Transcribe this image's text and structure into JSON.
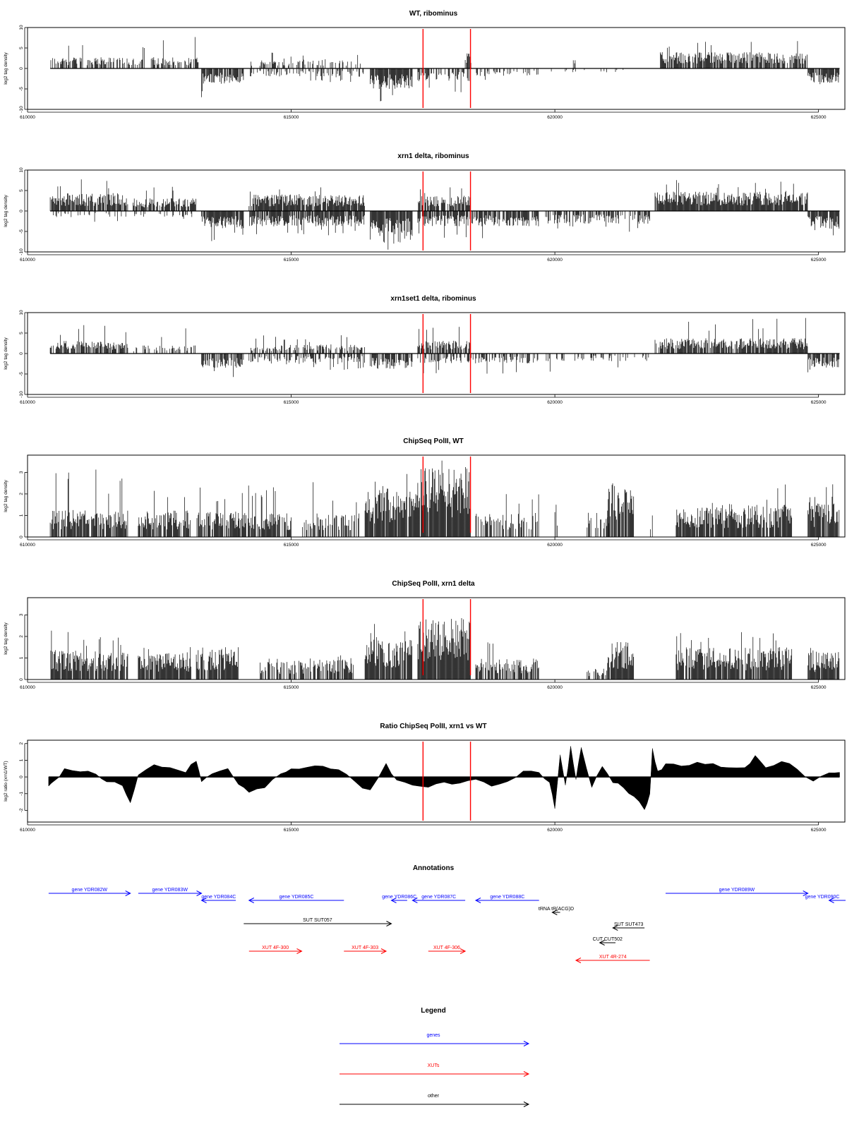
{
  "chart_data": [
    {
      "type": "bar",
      "title": "WT, ribominus",
      "ylabel": "log2 tag density",
      "xlim": [
        610000,
        625500
      ],
      "xticks": [
        "610000",
        "615000",
        "620000",
        "625000"
      ],
      "ylim": [
        -10,
        10
      ],
      "yticks": [
        "-10",
        "-5",
        "0",
        "5",
        "10"
      ],
      "markers_x": [
        617500,
        618400
      ],
      "segments": [
        {
          "x": [
            610430,
            613250
          ],
          "sign": 1,
          "amp": 2.2,
          "peak": 7.8,
          "dens": 0.55
        },
        {
          "x": [
            613300,
            614100
          ],
          "sign": -1,
          "amp": 3.0,
          "peak": 7.5,
          "dens": 0.9
        },
        {
          "x": [
            614200,
            616400
          ],
          "sign": 1,
          "amp": 1.8,
          "peak": 4.0,
          "dens": 0.35
        },
        {
          "x": [
            614200,
            616400
          ],
          "sign": -1,
          "amp": 1.6,
          "peak": 3.5,
          "dens": 0.35
        },
        {
          "x": [
            616500,
            617300
          ],
          "sign": -1,
          "amp": 4.0,
          "peak": 9.0,
          "dens": 0.9
        },
        {
          "x": [
            617400,
            618400
          ],
          "sign": -1,
          "amp": 2.5,
          "peak": 6.0,
          "dens": 0.6
        },
        {
          "x": [
            618300,
            618420
          ],
          "sign": 1,
          "amp": 3.0,
          "peak": 5.8,
          "dens": 0.5
        },
        {
          "x": [
            618500,
            619700
          ],
          "sign": -1,
          "amp": 1.5,
          "peak": 3.5,
          "dens": 0.3
        },
        {
          "x": [
            619800,
            621300
          ],
          "sign": -1,
          "amp": 0.8,
          "peak": 2.5,
          "dens": 0.1
        },
        {
          "x": [
            620350,
            620400
          ],
          "sign": 1,
          "amp": 2.0,
          "peak": 2.0,
          "dens": 0.5
        },
        {
          "x": [
            622000,
            624800
          ],
          "sign": 1,
          "amp": 3.2,
          "peak": 6.8,
          "dens": 0.85
        },
        {
          "x": [
            624800,
            625400
          ],
          "sign": -1,
          "amp": 2.8,
          "peak": 4.5,
          "dens": 0.9
        }
      ]
    },
    {
      "type": "bar",
      "title": "xrn1 delta, ribominus",
      "ylabel": "log2 tag density",
      "xlim": [
        610000,
        625500
      ],
      "xticks": [
        "610000",
        "615000",
        "620000",
        "625000"
      ],
      "ylim": [
        -10,
        10
      ],
      "yticks": [
        "-10",
        "-5",
        "0",
        "5",
        "10"
      ],
      "markers_x": [
        617500,
        618400
      ],
      "segments": [
        {
          "x": [
            610430,
            611900
          ],
          "sign": 1,
          "amp": 3.5,
          "peak": 7.8,
          "dens": 0.9
        },
        {
          "x": [
            612000,
            613200
          ],
          "sign": 1,
          "amp": 2.5,
          "peak": 6.8,
          "dens": 0.8
        },
        {
          "x": [
            610430,
            613200
          ],
          "sign": -1,
          "amp": 1.2,
          "peak": 3.0,
          "dens": 0.2
        },
        {
          "x": [
            613300,
            614100
          ],
          "sign": -1,
          "amp": 3.5,
          "peak": 7.5,
          "dens": 0.95
        },
        {
          "x": [
            614200,
            616400
          ],
          "sign": 1,
          "amp": 3.2,
          "peak": 6.0,
          "dens": 0.9
        },
        {
          "x": [
            614200,
            616400
          ],
          "sign": -1,
          "amp": 3.0,
          "peak": 6.0,
          "dens": 0.85
        },
        {
          "x": [
            616500,
            617300
          ],
          "sign": -1,
          "amp": 5.0,
          "peak": 9.5,
          "dens": 0.95
        },
        {
          "x": [
            617400,
            618400
          ],
          "sign": 1,
          "amp": 3.0,
          "peak": 6.5,
          "dens": 0.8
        },
        {
          "x": [
            617400,
            619700
          ],
          "sign": -1,
          "amp": 3.0,
          "peak": 7.0,
          "dens": 0.8
        },
        {
          "x": [
            619800,
            621800
          ],
          "sign": -1,
          "amp": 2.5,
          "peak": 5.5,
          "dens": 0.6
        },
        {
          "x": [
            621900,
            624800
          ],
          "sign": 1,
          "amp": 3.8,
          "peak": 7.8,
          "dens": 0.95
        },
        {
          "x": [
            624800,
            625400
          ],
          "sign": -1,
          "amp": 3.5,
          "peak": 6.0,
          "dens": 0.95
        }
      ]
    },
    {
      "type": "bar",
      "title": "xrn1set1 delta, ribominus",
      "ylabel": "log2 tag density",
      "xlim": [
        610000,
        625500
      ],
      "xticks": [
        "610000",
        "615000",
        "620000",
        "625000"
      ],
      "ylim": [
        -10,
        10
      ],
      "yticks": [
        "-10",
        "-5",
        "0",
        "5",
        "10"
      ],
      "markers_x": [
        617500,
        618400
      ],
      "segments": [
        {
          "x": [
            610430,
            611900
          ],
          "sign": 1,
          "amp": 2.5,
          "peak": 7.5,
          "dens": 0.7
        },
        {
          "x": [
            612000,
            613200
          ],
          "sign": 1,
          "amp": 1.6,
          "peak": 6.5,
          "dens": 0.4
        },
        {
          "x": [
            613300,
            614100
          ],
          "sign": -1,
          "amp": 2.8,
          "peak": 6.0,
          "dens": 0.8
        },
        {
          "x": [
            614200,
            616400
          ],
          "sign": 1,
          "amp": 1.8,
          "peak": 4.5,
          "dens": 0.5
        },
        {
          "x": [
            614200,
            616400
          ],
          "sign": -1,
          "amp": 1.8,
          "peak": 4.0,
          "dens": 0.5
        },
        {
          "x": [
            616500,
            617300
          ],
          "sign": -1,
          "amp": 3.0,
          "peak": 9.0,
          "dens": 0.8
        },
        {
          "x": [
            617400,
            618400
          ],
          "sign": 1,
          "amp": 2.5,
          "peak": 7.0,
          "dens": 0.6
        },
        {
          "x": [
            617400,
            619700
          ],
          "sign": -1,
          "amp": 2.0,
          "peak": 5.5,
          "dens": 0.5
        },
        {
          "x": [
            619800,
            621800
          ],
          "sign": -1,
          "amp": 1.5,
          "peak": 5.5,
          "dens": 0.3
        },
        {
          "x": [
            621900,
            624800
          ],
          "sign": 1,
          "amp": 3.0,
          "peak": 9.0,
          "dens": 0.8
        },
        {
          "x": [
            624800,
            625400
          ],
          "sign": -1,
          "amp": 2.8,
          "peak": 5.0,
          "dens": 0.85
        }
      ]
    },
    {
      "type": "bar",
      "title": "ChipSeq PolII, WT",
      "ylabel": "log2 tag density",
      "xlim": [
        610000,
        625500
      ],
      "xticks": [
        "610000",
        "615000",
        "620000",
        "625000"
      ],
      "ylim": [
        0,
        3.8
      ],
      "yticks": [
        "0",
        "1",
        "2",
        "3"
      ],
      "markers_x": [
        617500,
        618400
      ],
      "segments": [
        {
          "x": [
            610430,
            611900
          ],
          "sign": 1,
          "amp": 1.0,
          "peak": 3.2,
          "dens": 0.85
        },
        {
          "x": [
            612100,
            613100
          ],
          "sign": 1,
          "amp": 1.0,
          "peak": 2.5,
          "dens": 0.85
        },
        {
          "x": [
            613200,
            614000
          ],
          "sign": 1,
          "amp": 1.0,
          "peak": 2.7,
          "dens": 0.85
        },
        {
          "x": [
            614000,
            615000
          ],
          "sign": 1,
          "amp": 0.9,
          "peak": 2.5,
          "dens": 0.75
        },
        {
          "x": [
            615200,
            616300
          ],
          "sign": 1,
          "amp": 0.9,
          "peak": 2.6,
          "dens": 0.5
        },
        {
          "x": [
            616400,
            617000
          ],
          "sign": 1,
          "amp": 1.8,
          "peak": 2.6,
          "dens": 0.95
        },
        {
          "x": [
            617000,
            617400
          ],
          "sign": 1,
          "amp": 1.8,
          "peak": 3.0,
          "dens": 0.9
        },
        {
          "x": [
            617400,
            618400
          ],
          "sign": 1,
          "amp": 2.6,
          "peak": 3.7,
          "dens": 0.98
        },
        {
          "x": [
            618500,
            619700
          ],
          "sign": 1,
          "amp": 0.9,
          "peak": 2.0,
          "dens": 0.5
        },
        {
          "x": [
            620000,
            620050
          ],
          "sign": 1,
          "amp": 1.5,
          "peak": 1.5,
          "dens": 0.5
        },
        {
          "x": [
            620600,
            621100
          ],
          "sign": 1,
          "amp": 0.9,
          "peak": 1.6,
          "dens": 0.5
        },
        {
          "x": [
            621000,
            621500
          ],
          "sign": 1,
          "amp": 2.0,
          "peak": 3.2,
          "dens": 0.95
        },
        {
          "x": [
            621800,
            621850
          ],
          "sign": 1,
          "amp": 1.0,
          "peak": 1.0,
          "dens": 0.5
        },
        {
          "x": [
            622300,
            623600
          ],
          "sign": 1,
          "amp": 1.1,
          "peak": 1.6,
          "dens": 0.9
        },
        {
          "x": [
            623600,
            624500
          ],
          "sign": 1,
          "amp": 1.2,
          "peak": 2.6,
          "dens": 0.85
        },
        {
          "x": [
            624800,
            625400
          ],
          "sign": 1,
          "amp": 1.3,
          "peak": 3.0,
          "dens": 0.9
        }
      ]
    },
    {
      "type": "bar",
      "title": "ChipSeq PolII, xrn1 delta",
      "ylabel": "log2 tag density",
      "xlim": [
        610000,
        625500
      ],
      "xticks": [
        "610000",
        "615000",
        "620000",
        "625000"
      ],
      "ylim": [
        0,
        3.8
      ],
      "yticks": [
        "0",
        "1",
        "2",
        "3"
      ],
      "markers_x": [
        617500,
        618400
      ],
      "segments": [
        {
          "x": [
            610430,
            611900
          ],
          "sign": 1,
          "amp": 1.1,
          "peak": 2.3,
          "dens": 0.9
        },
        {
          "x": [
            612100,
            613100
          ],
          "sign": 1,
          "amp": 1.0,
          "peak": 2.0,
          "dens": 0.9
        },
        {
          "x": [
            613200,
            614000
          ],
          "sign": 1,
          "amp": 1.2,
          "peak": 2.4,
          "dens": 0.9
        },
        {
          "x": [
            614400,
            615300
          ],
          "sign": 1,
          "amp": 0.7,
          "peak": 1.3,
          "dens": 0.7
        },
        {
          "x": [
            615300,
            616200
          ],
          "sign": 1,
          "amp": 0.8,
          "peak": 1.6,
          "dens": 0.7
        },
        {
          "x": [
            616400,
            617300
          ],
          "sign": 1,
          "amp": 1.5,
          "peak": 2.6,
          "dens": 0.95
        },
        {
          "x": [
            617400,
            618400
          ],
          "sign": 1,
          "amp": 2.3,
          "peak": 2.9,
          "dens": 0.98
        },
        {
          "x": [
            618500,
            619700
          ],
          "sign": 1,
          "amp": 0.8,
          "peak": 1.8,
          "dens": 0.7
        },
        {
          "x": [
            620600,
            621000
          ],
          "sign": 1,
          "amp": 0.4,
          "peak": 0.7,
          "dens": 0.5
        },
        {
          "x": [
            621000,
            621500
          ],
          "sign": 1,
          "amp": 1.4,
          "peak": 2.4,
          "dens": 0.95
        },
        {
          "x": [
            622300,
            623600
          ],
          "sign": 1,
          "amp": 1.2,
          "peak": 2.3,
          "dens": 0.9
        },
        {
          "x": [
            623600,
            624500
          ],
          "sign": 1,
          "amp": 1.2,
          "peak": 2.2,
          "dens": 0.9
        },
        {
          "x": [
            624800,
            625400
          ],
          "sign": 1,
          "amp": 1.0,
          "peak": 2.0,
          "dens": 0.9
        }
      ]
    },
    {
      "type": "area",
      "title": "Ratio ChipSeq PolII, xrn1 vs WT",
      "ylabel": "log2 ratio (xrn1/WT)",
      "xlim": [
        610000,
        625500
      ],
      "xticks": [
        "610000",
        "615000",
        "620000",
        "625000"
      ],
      "ylim": [
        -2.7,
        2.2
      ],
      "yticks": [
        "-2",
        "-1",
        "0",
        "1",
        "2"
      ],
      "markers_x": [
        617500,
        618400
      ],
      "x": [
        610400,
        610500,
        610700,
        611000,
        611300,
        611500,
        611800,
        611950,
        612100,
        612400,
        612700,
        613000,
        613200,
        613300,
        613500,
        613800,
        614000,
        614200,
        614500,
        614800,
        615000,
        615300,
        615600,
        615900,
        616200,
        616500,
        616800,
        617000,
        617300,
        617600,
        617900,
        618200,
        618500,
        618800,
        619100,
        619400,
        619700,
        619900,
        620000,
        620100,
        620200,
        620300,
        620400,
        620500,
        620700,
        620900,
        621100,
        621300,
        621500,
        621700,
        621800,
        621850,
        621950,
        622100,
        622400,
        622700,
        623000,
        623300,
        623600,
        623800,
        624000,
        624300,
        624600,
        624900,
        625200,
        625400
      ],
      "y": [
        -0.6,
        -0.3,
        0.5,
        0.3,
        0.2,
        -0.3,
        -0.5,
        -1.5,
        0.1,
        0.7,
        0.6,
        0.3,
        1.0,
        -0.3,
        0.2,
        0.5,
        -0.5,
        -0.9,
        -0.6,
        0.2,
        0.5,
        0.6,
        0.7,
        0.4,
        -0.3,
        -0.8,
        0.8,
        -0.2,
        -0.5,
        -0.6,
        -0.3,
        -0.4,
        -0.1,
        -0.5,
        -0.3,
        0.4,
        0.3,
        -0.3,
        -1.9,
        1.3,
        -0.5,
        1.8,
        -0.2,
        1.8,
        -0.6,
        0.6,
        -0.3,
        -0.7,
        -1.2,
        -2.0,
        -1.0,
        1.7,
        0.3,
        0.8,
        0.6,
        0.9,
        0.8,
        0.6,
        0.5,
        1.3,
        0.6,
        0.9,
        0.5,
        -0.3,
        0.2,
        0.3
      ]
    }
  ],
  "annotations": {
    "title": "Annotations",
    "items": [
      {
        "label": "gene YDR082W",
        "start": 610400,
        "end": 611950,
        "dir": "right",
        "color": "#0000ff",
        "row": 0
      },
      {
        "label": "gene YDR083W",
        "start": 612100,
        "end": 613300,
        "dir": "right",
        "color": "#0000ff",
        "row": 0
      },
      {
        "label": "gene YDR084C",
        "start": 613300,
        "end": 613950,
        "dir": "left",
        "color": "#0000ff",
        "row": 1
      },
      {
        "label": "gene YDR085C",
        "start": 614200,
        "end": 616000,
        "dir": "left",
        "color": "#0000ff",
        "row": 1
      },
      {
        "label": "gene YDR086C",
        "start": 616900,
        "end": 617200,
        "dir": "left",
        "color": "#0000ff",
        "row": 1
      },
      {
        "label": "gene YDR087C",
        "start": 617300,
        "end": 618300,
        "dir": "left",
        "color": "#0000ff",
        "row": 1
      },
      {
        "label": "gene YDR088C",
        "start": 618500,
        "end": 619700,
        "dir": "left",
        "color": "#0000ff",
        "row": 1
      },
      {
        "label": "gene YDR089W",
        "start": 622100,
        "end": 624800,
        "dir": "right",
        "color": "#0000ff",
        "row": 0
      },
      {
        "label": "gene YDR090C",
        "start": 625200,
        "end": 626000,
        "dir": "left",
        "color": "#0000ff",
        "row": 1
      },
      {
        "label": "tRNA tR(ACG)D",
        "start": 619950,
        "end": 620100,
        "dir": "left",
        "color": "#000000",
        "row": 2
      },
      {
        "label": "SUT SUT057",
        "start": 614100,
        "end": 616900,
        "dir": "right",
        "color": "#000000",
        "row": 3
      },
      {
        "label": "SUT SUT473",
        "start": 621100,
        "end": 621700,
        "dir": "left",
        "color": "#000000",
        "row": 4
      },
      {
        "label": "CUT CUT502",
        "start": 620850,
        "end": 621150,
        "dir": "left",
        "color": "#000000",
        "row": 5
      },
      {
        "label": "XUT 4F-300",
        "start": 614200,
        "end": 615200,
        "dir": "right",
        "color": "#ff0000",
        "row": 6
      },
      {
        "label": "XUT 4F-303",
        "start": 616000,
        "end": 616800,
        "dir": "right",
        "color": "#ff0000",
        "row": 6
      },
      {
        "label": "XUT 4F-306",
        "start": 617600,
        "end": 618300,
        "dir": "right",
        "color": "#ff0000",
        "row": 6
      },
      {
        "label": "XUT 4R-274",
        "start": 620400,
        "end": 621800,
        "dir": "left",
        "color": "#ff0000",
        "row": 7
      }
    ]
  },
  "legend": {
    "title": "Legend",
    "items": [
      {
        "label": "genes",
        "color": "#0000ff"
      },
      {
        "label": "XUTs",
        "color": "#ff0000"
      },
      {
        "label": "other",
        "color": "#000000"
      }
    ]
  },
  "colors": {
    "bar": "#000000",
    "marker": "#ff0000",
    "frame": "#000000"
  }
}
